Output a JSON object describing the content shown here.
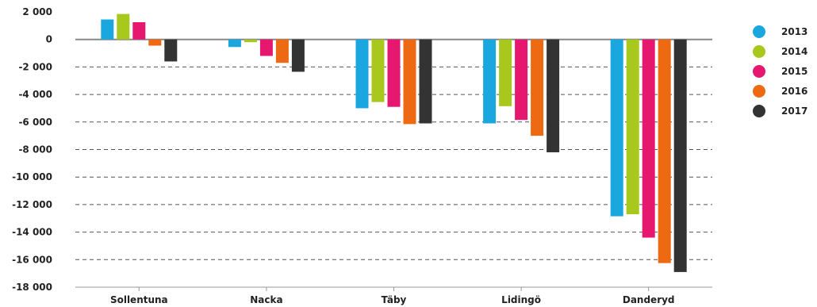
{
  "chart_data": {
    "type": "bar",
    "title": "",
    "xlabel": "",
    "ylabel": "",
    "categories": [
      "Sollentuna",
      "Nacka",
      "Täby",
      "Lidingö",
      "Danderyd"
    ],
    "series": [
      {
        "name": "2013",
        "color": "#1aa7e0",
        "values": [
          1450,
          -550,
          -5000,
          -6100,
          -12850
        ]
      },
      {
        "name": "2014",
        "color": "#a8c81e",
        "values": [
          1850,
          -200,
          -4550,
          -4850,
          -12700
        ]
      },
      {
        "name": "2015",
        "color": "#e5176f",
        "values": [
          1250,
          -1200,
          -4900,
          -5850,
          -14400
        ]
      },
      {
        "name": "2016",
        "color": "#ee6a12",
        "values": [
          -450,
          -1700,
          -6150,
          -7000,
          -16250
        ]
      },
      {
        "name": "2017",
        "color": "#333333",
        "values": [
          -1600,
          -2350,
          -6100,
          -8200,
          -16900
        ]
      }
    ],
    "ylim": [
      -18000,
      2000
    ],
    "yticks": [
      2000,
      0,
      -2000,
      -4000,
      -6000,
      -8000,
      -10000,
      -12000,
      -14000,
      -16000,
      -18000
    ],
    "ytick_labels": [
      "2 000",
      "0",
      "-2 000",
      "-4 000",
      "-6 000",
      "-8 000",
      "-10 000",
      "-12 000",
      "-14 000",
      "-16 000",
      "-18 000"
    ],
    "grid": "dashed horizontal",
    "legend": "right"
  }
}
